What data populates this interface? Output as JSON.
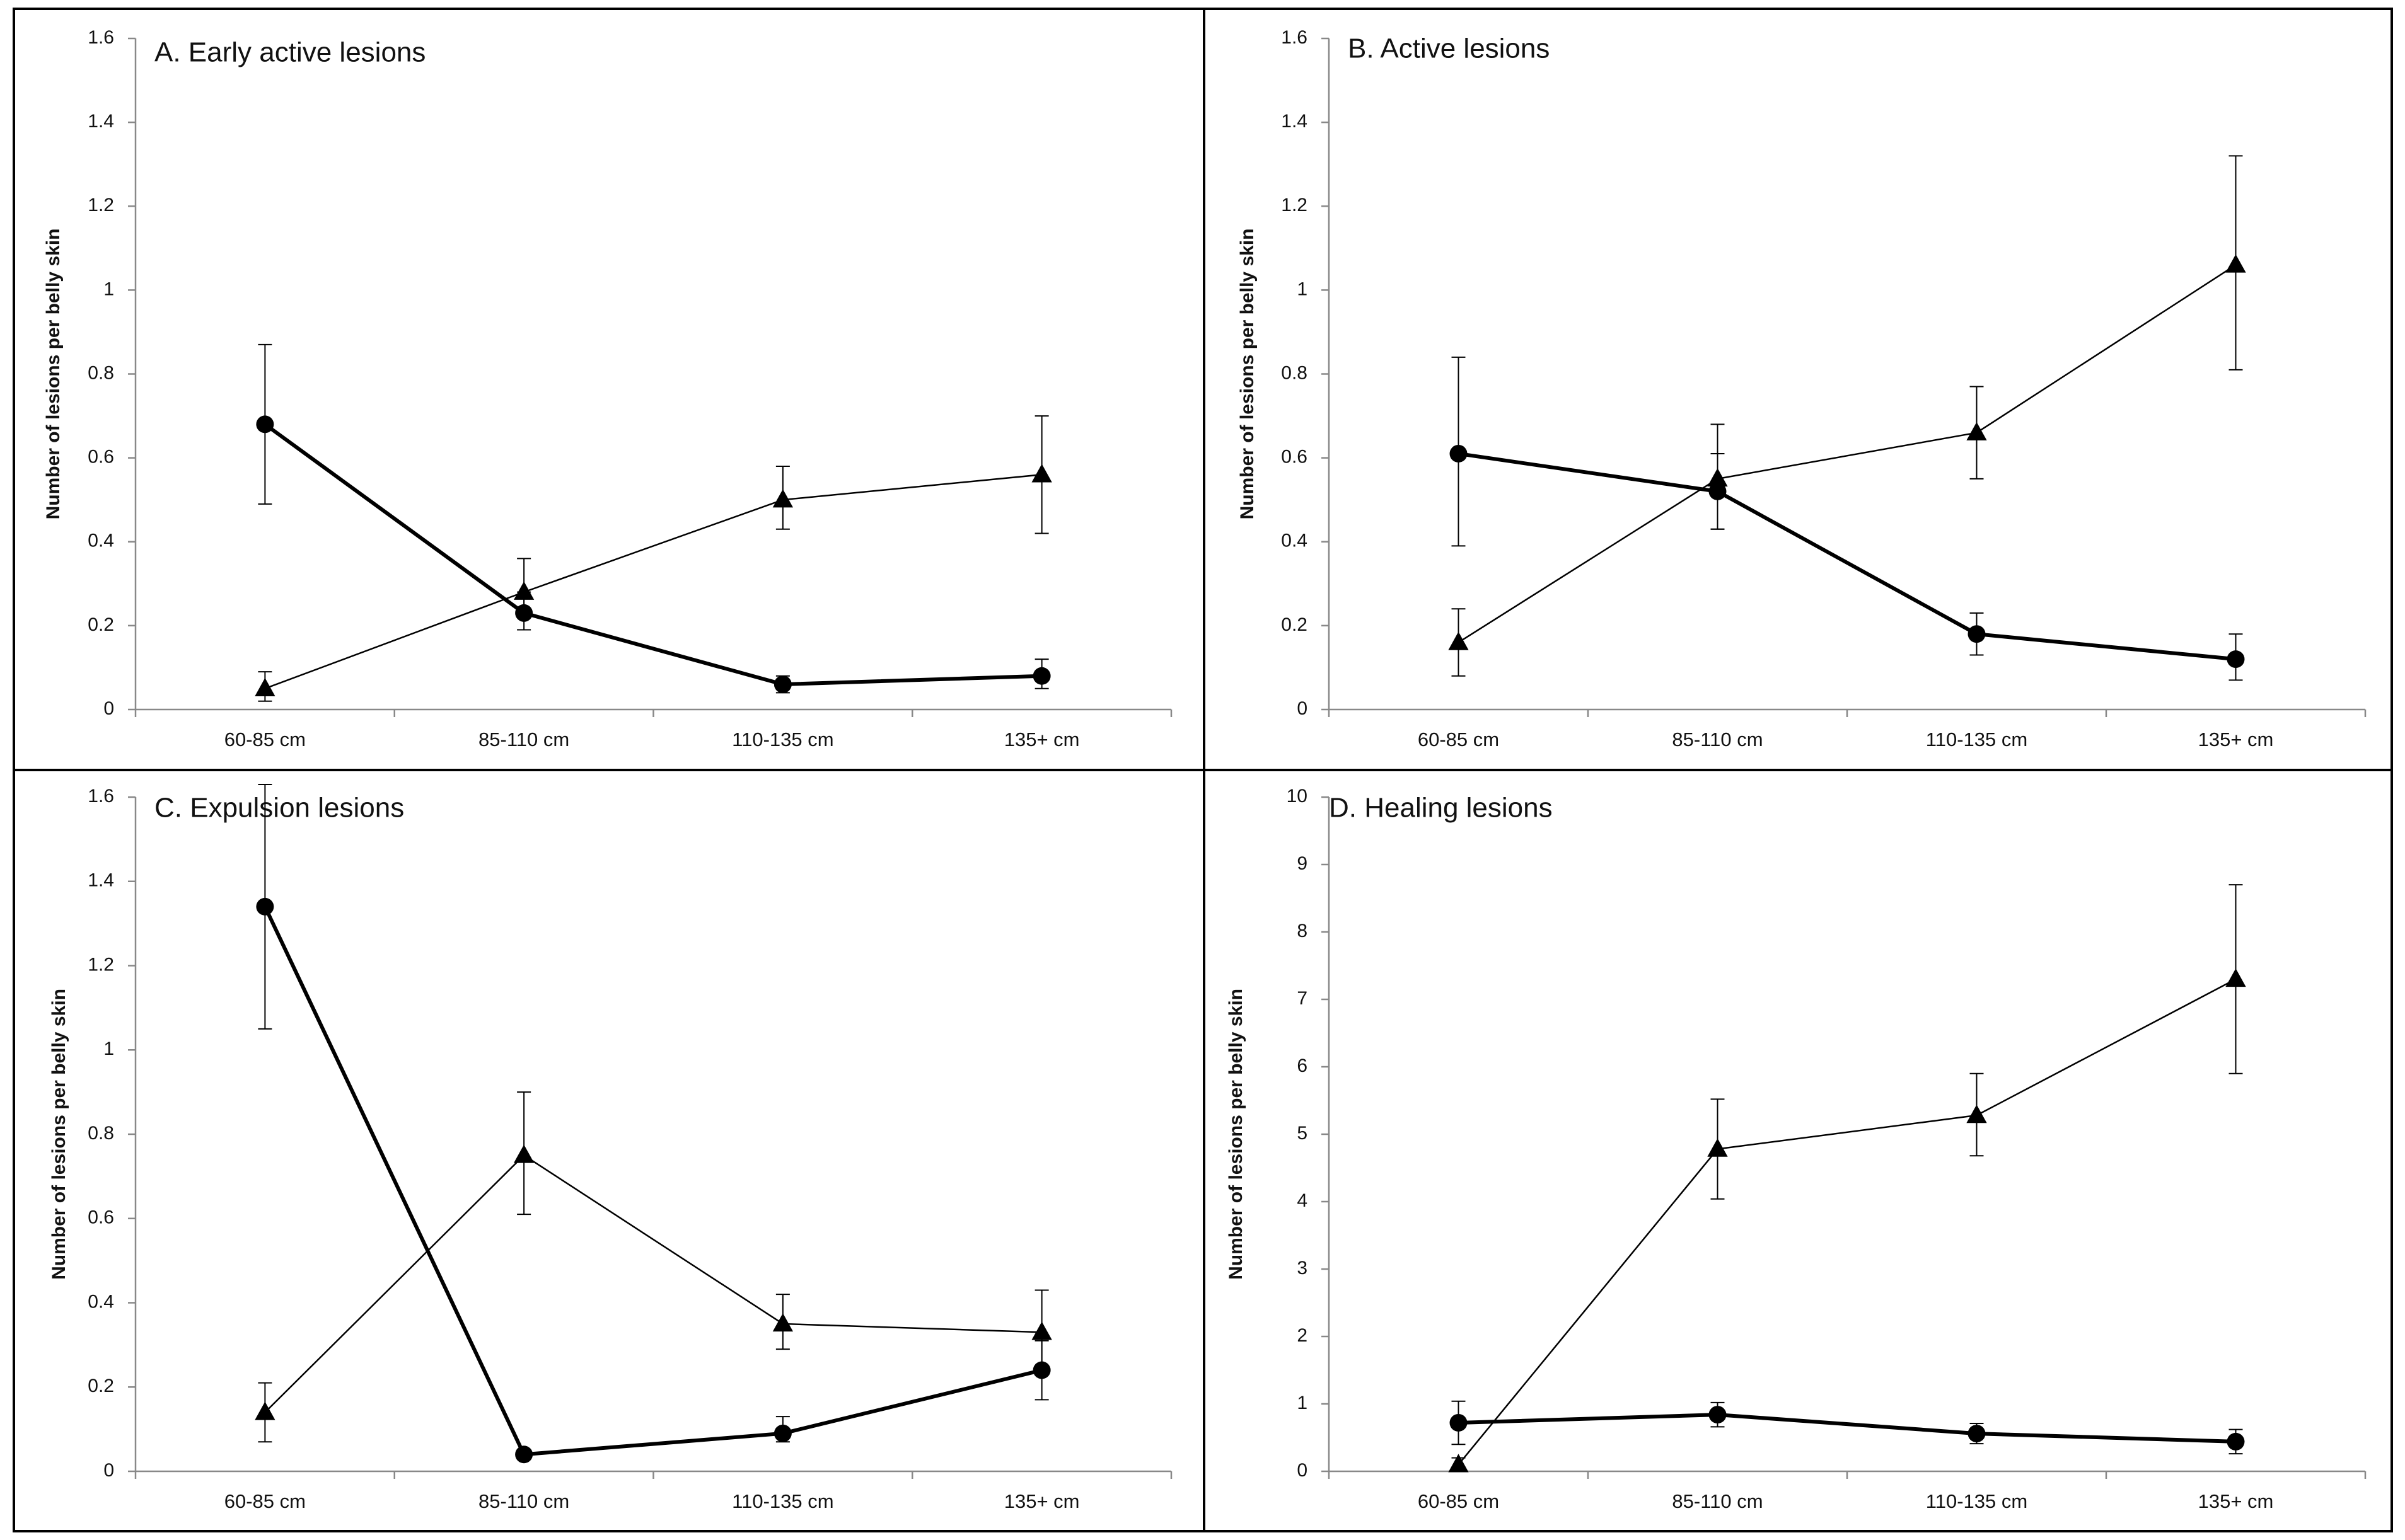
{
  "chart_data": [
    {
      "type": "line",
      "title": "A. Early active lesions",
      "ylabel": "Number of lesions per belly skin",
      "xlabel": "",
      "categories": [
        "60-85 cm",
        "85-110 cm",
        "110-135 cm",
        "135+ cm"
      ],
      "ylim": [
        0,
        1.6
      ],
      "yticks": [
        "0",
        "0.2",
        "0.4",
        "0.6",
        "0.8",
        "1",
        "1.2",
        "1.4",
        "1.6"
      ],
      "grid": false,
      "series": [
        {
          "marker": "circle",
          "line": "thick",
          "values": [
            0.68,
            0.23,
            0.06,
            0.08
          ],
          "err_low": [
            0.49,
            0.19,
            0.04,
            0.05
          ],
          "err_high": [
            0.87,
            0.28,
            0.08,
            0.12
          ]
        },
        {
          "marker": "triangle",
          "line": "thin",
          "values": [
            0.05,
            0.28,
            0.5,
            0.56
          ],
          "err_low": [
            0.02,
            0.22,
            0.43,
            0.42
          ],
          "err_high": [
            0.09,
            0.36,
            0.58,
            0.7
          ]
        }
      ]
    },
    {
      "type": "line",
      "title": "B. Active lesions",
      "ylabel": "Number of lesions per belly skin",
      "xlabel": "",
      "categories": [
        "60-85 cm",
        "85-110 cm",
        "110-135 cm",
        "135+ cm"
      ],
      "ylim": [
        0,
        1.6
      ],
      "yticks": [
        "0",
        "0.2",
        "0.4",
        "0.6",
        "0.8",
        "1",
        "1.2",
        "1.4",
        "1.6"
      ],
      "grid": false,
      "series": [
        {
          "marker": "circle",
          "line": "thick",
          "values": [
            0.61,
            0.52,
            0.18,
            0.12
          ],
          "err_low": [
            0.39,
            0.43,
            0.13,
            0.07
          ],
          "err_high": [
            0.84,
            0.61,
            0.23,
            0.18
          ]
        },
        {
          "marker": "triangle",
          "line": "thin",
          "values": [
            0.16,
            0.55,
            0.66,
            1.06
          ],
          "err_low": [
            0.08,
            0.43,
            0.55,
            0.81
          ],
          "err_high": [
            0.24,
            0.68,
            0.77,
            1.32
          ]
        }
      ]
    },
    {
      "type": "line",
      "title": "C. Expulsion lesions",
      "ylabel": "Number of lesions per belly skin",
      "xlabel": "",
      "categories": [
        "60-85 cm",
        "85-110 cm",
        "110-135 cm",
        "135+ cm"
      ],
      "ylim": [
        0,
        1.6
      ],
      "yticks": [
        "0",
        "0.2",
        "0.4",
        "0.6",
        "0.8",
        "1",
        "1.2",
        "1.4",
        "1.6"
      ],
      "grid": false,
      "series": [
        {
          "marker": "circle",
          "line": "thick",
          "values": [
            1.34,
            0.04,
            0.09,
            0.24
          ],
          "err_low": [
            1.05,
            0.03,
            0.07,
            0.17
          ],
          "err_high": [
            1.63,
            0.05,
            0.13,
            0.31
          ]
        },
        {
          "marker": "triangle",
          "line": "thin",
          "values": [
            0.14,
            0.75,
            0.35,
            0.33
          ],
          "err_low": [
            0.07,
            0.61,
            0.29,
            0.23
          ],
          "err_high": [
            0.21,
            0.9,
            0.42,
            0.43
          ]
        }
      ]
    },
    {
      "type": "line",
      "title": "D. Healing lesions",
      "ylabel": "Number of lesions per belly skin",
      "xlabel": "",
      "categories": [
        "60-85 cm",
        "85-110 cm",
        "110-135 cm",
        "135+ cm"
      ],
      "ylim": [
        0,
        10
      ],
      "yticks": [
        "0",
        "1",
        "2",
        "3",
        "4",
        "5",
        "6",
        "7",
        "8",
        "9",
        "10"
      ],
      "grid": false,
      "series": [
        {
          "marker": "circle",
          "line": "thick",
          "values": [
            0.72,
            0.84,
            0.56,
            0.44
          ],
          "err_low": [
            0.4,
            0.66,
            0.41,
            0.26
          ],
          "err_high": [
            1.04,
            1.02,
            0.71,
            0.62
          ]
        },
        {
          "marker": "triangle",
          "line": "thin",
          "values": [
            0.1,
            4.78,
            5.28,
            7.3
          ],
          "err_low": [
            0.0,
            4.04,
            4.68,
            5.9
          ],
          "err_high": [
            0.2,
            5.52,
            5.9,
            8.7
          ]
        }
      ]
    }
  ]
}
